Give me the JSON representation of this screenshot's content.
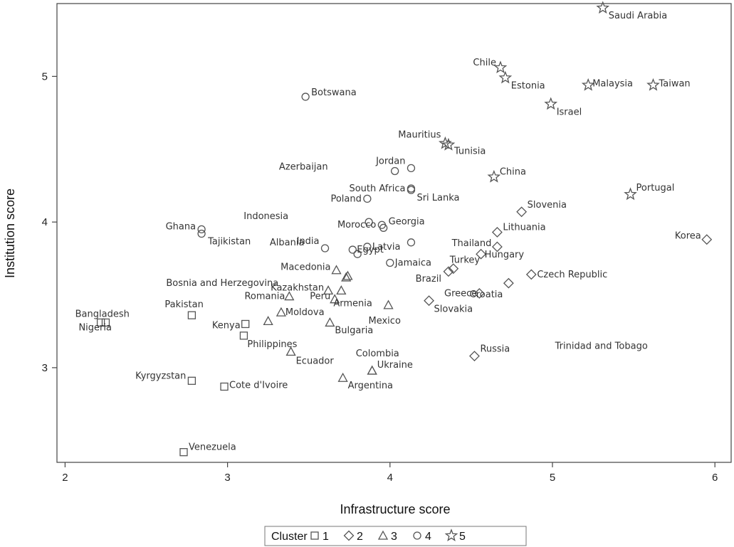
{
  "chart_data": {
    "type": "scatter",
    "xlabel": "Infrastructure score",
    "ylabel": "Institution score",
    "xlim": [
      1.95,
      6.1
    ],
    "ylim": [
      2.35,
      5.5
    ],
    "xticks": [
      "2",
      "3",
      "4",
      "5",
      "6"
    ],
    "yticks": [
      "3",
      "4",
      "5"
    ],
    "grid": false,
    "legend": {
      "position": "bottom",
      "title": "Cluster",
      "entries": [
        {
          "cluster": "1",
          "marker": "square"
        },
        {
          "cluster": "2",
          "marker": "diamond"
        },
        {
          "cluster": "3",
          "marker": "triangle"
        },
        {
          "cluster": "4",
          "marker": "circle"
        },
        {
          "cluster": "5",
          "marker": "star"
        }
      ]
    },
    "points": [
      {
        "label": "Saudi Arabia",
        "x": 5.31,
        "y": 5.47,
        "cluster": 5
      },
      {
        "label": "Chile",
        "x": 4.68,
        "y": 5.06,
        "cluster": 5
      },
      {
        "label": "Estonia",
        "x": 4.71,
        "y": 4.99,
        "cluster": 5
      },
      {
        "label": "Malaysia",
        "x": 5.22,
        "y": 4.94,
        "cluster": 5
      },
      {
        "label": "Taiwan",
        "x": 5.62,
        "y": 4.94,
        "cluster": 5
      },
      {
        "label": "Israel",
        "x": 4.99,
        "y": 4.81,
        "cluster": 5
      },
      {
        "label": "Mauritius",
        "x": 4.34,
        "y": 4.54,
        "cluster": 5
      },
      {
        "label": "Tunisia",
        "x": 4.36,
        "y": 4.53,
        "cluster": 5
      },
      {
        "label": "China",
        "x": 4.64,
        "y": 4.31,
        "cluster": 5
      },
      {
        "label": "Portugal",
        "x": 5.48,
        "y": 4.19,
        "cluster": 5
      },
      {
        "label": "Botswana",
        "x": 3.48,
        "y": 4.86,
        "cluster": 4
      },
      {
        "label": "Jordan",
        "x": 4.13,
        "y": 4.37,
        "cluster": 4
      },
      {
        "label": "Azerbaijan",
        "x": 4.03,
        "y": 4.35,
        "cluster": 4
      },
      {
        "label": "South Africa",
        "x": 4.13,
        "y": 4.23,
        "cluster": 4
      },
      {
        "label": "Sri Lanka",
        "x": 4.13,
        "y": 4.22,
        "cluster": 4
      },
      {
        "label": "Poland",
        "x": 3.86,
        "y": 4.16,
        "cluster": 4
      },
      {
        "label": "Indonesia",
        "x": 3.87,
        "y": 4.0,
        "cluster": 4
      },
      {
        "label": "Morocco",
        "x": 3.95,
        "y": 3.98,
        "cluster": 4
      },
      {
        "label": "Georgia",
        "x": 3.96,
        "y": 3.96,
        "cluster": 4
      },
      {
        "label": "Ghana",
        "x": 2.84,
        "y": 3.95,
        "cluster": 4
      },
      {
        "label": "Tajikistan",
        "x": 2.84,
        "y": 3.92,
        "cluster": 4
      },
      {
        "label": "Albania",
        "x": 4.13,
        "y": 3.86,
        "cluster": 4
      },
      {
        "label": "Latvia",
        "x": 3.86,
        "y": 3.83,
        "cluster": 4
      },
      {
        "label": "India",
        "x": 3.6,
        "y": 3.82,
        "cluster": 4
      },
      {
        "label": "Egypt",
        "x": 3.77,
        "y": 3.81,
        "cluster": 4
      },
      {
        "label": "Latvia",
        "x": 3.8,
        "y": 3.78,
        "cluster": 4
      },
      {
        "label": "Jamaica",
        "x": 4.0,
        "y": 3.72,
        "cluster": 4
      },
      {
        "label": "Slovenia",
        "x": 4.81,
        "y": 4.07,
        "cluster": 2
      },
      {
        "label": "Lithuania",
        "x": 4.66,
        "y": 3.93,
        "cluster": 2
      },
      {
        "label": "Korea",
        "x": 5.95,
        "y": 3.88,
        "cluster": 2
      },
      {
        "label": "Thailand",
        "x": 4.66,
        "y": 3.83,
        "cluster": 2
      },
      {
        "label": "Hungary",
        "x": 4.56,
        "y": 3.78,
        "cluster": 2
      },
      {
        "label": "Turkey",
        "x": 4.39,
        "y": 3.68,
        "cluster": 2
      },
      {
        "label": "Brazil",
        "x": 4.36,
        "y": 3.66,
        "cluster": 2
      },
      {
        "label": "Czech Republic",
        "x": 4.87,
        "y": 3.64,
        "cluster": 2
      },
      {
        "label": "Croatia",
        "x": 4.73,
        "y": 3.58,
        "cluster": 2
      },
      {
        "label": "Greece",
        "x": 4.55,
        "y": 3.51,
        "cluster": 2
      },
      {
        "label": "Slovakia",
        "x": 4.24,
        "y": 3.46,
        "cluster": 2
      },
      {
        "label": "Russia",
        "x": 4.52,
        "y": 3.08,
        "cluster": 2
      },
      {
        "label": "Macedonia",
        "x": 3.67,
        "y": 3.67,
        "cluster": 3
      },
      {
        "label": "Jamaica",
        "x": 3.74,
        "y": 3.63,
        "cluster": 3
      },
      {
        "label": "Bosnia and Herzegovina",
        "x": 3.73,
        "y": 3.62,
        "cluster": 3
      },
      {
        "label": "Kazakhstan",
        "x": 3.62,
        "y": 3.53,
        "cluster": 3
      },
      {
        "label": "Armenia",
        "x": 3.7,
        "y": 3.53,
        "cluster": 3
      },
      {
        "label": "Romania",
        "x": 3.38,
        "y": 3.49,
        "cluster": 3
      },
      {
        "label": "Peru",
        "x": 3.66,
        "y": 3.47,
        "cluster": 3
      },
      {
        "label": "Mexico",
        "x": 3.99,
        "y": 3.43,
        "cluster": 3
      },
      {
        "label": "Moldova",
        "x": 3.33,
        "y": 3.38,
        "cluster": 3
      },
      {
        "label": "Trinidad and Tobago",
        "x": 3.25,
        "y": 3.32,
        "cluster": 3
      },
      {
        "label": "Bulgaria",
        "x": 3.63,
        "y": 3.31,
        "cluster": 3
      },
      {
        "label": "Ecuador",
        "x": 3.39,
        "y": 3.11,
        "cluster": 3
      },
      {
        "label": "Colombia",
        "x": 3.89,
        "y": 2.98,
        "cluster": 3
      },
      {
        "label": "Ukraine",
        "x": 3.89,
        "y": 2.98,
        "cluster": 3
      },
      {
        "label": "Argentina",
        "x": 3.71,
        "y": 2.93,
        "cluster": 3
      },
      {
        "label": "Bangladesh",
        "x": 2.22,
        "y": 3.31,
        "cluster": 1
      },
      {
        "label": "Nigeria",
        "x": 2.25,
        "y": 3.31,
        "cluster": 1
      },
      {
        "label": "Pakistan",
        "x": 2.78,
        "y": 3.36,
        "cluster": 1
      },
      {
        "label": "Kenya",
        "x": 3.11,
        "y": 3.3,
        "cluster": 1
      },
      {
        "label": "Philippines",
        "x": 3.1,
        "y": 3.22,
        "cluster": 1
      },
      {
        "label": "Kyrgyzstan",
        "x": 2.78,
        "y": 2.91,
        "cluster": 1
      },
      {
        "label": "Cote d'Ivoire",
        "x": 2.98,
        "y": 2.87,
        "cluster": 1
      },
      {
        "label": "Venezuela",
        "x": 2.73,
        "y": 2.42,
        "cluster": 1
      }
    ]
  }
}
